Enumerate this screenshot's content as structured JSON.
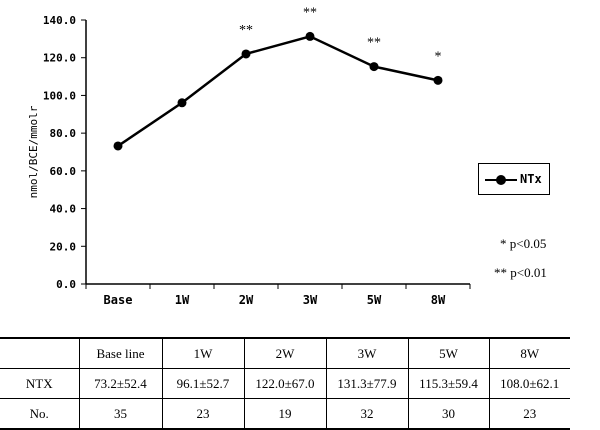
{
  "chart_data": {
    "type": "line",
    "ylabel": "nmol/BCE/mmolr",
    "categories": [
      "Base",
      "1W",
      "2W",
      "3W",
      "5W",
      "8W"
    ],
    "y_ticks": [
      "0.0",
      "20.0",
      "40.0",
      "60.0",
      "80.0",
      "100.0",
      "120.0",
      "140.0"
    ],
    "ylim": [
      0,
      140
    ],
    "series": [
      {
        "name": "NTx",
        "values": [
          73.2,
          96.1,
          122.0,
          131.3,
          115.3,
          108.0
        ]
      }
    ],
    "significance": [
      "",
      "",
      "**",
      "**",
      "**",
      "*"
    ],
    "legend": "right",
    "grid": false
  },
  "notes": {
    "p05": "* p<0.05",
    "p01": "** p<0.01"
  },
  "table": {
    "headers": [
      "",
      "Base line",
      "1W",
      "2W",
      "3W",
      "5W",
      "8W"
    ],
    "rows": [
      [
        "NTX",
        "73.2±52.4",
        "96.1±52.7",
        "122.0±67.0",
        "131.3±77.9",
        "115.3±59.4",
        "108.0±62.1"
      ],
      [
        "No.",
        "35",
        "23",
        "19",
        "32",
        "30",
        "23"
      ]
    ]
  }
}
